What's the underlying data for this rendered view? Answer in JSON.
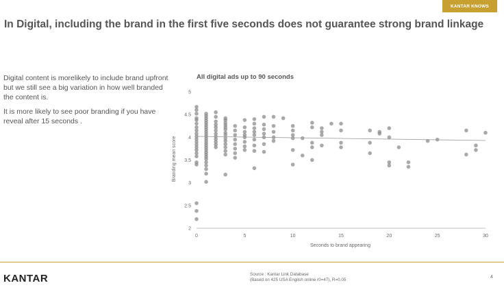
{
  "badge": "KANTAR KNOWS",
  "title": "In Digital, including the brand in the first five seconds does not guarantee strong brand linkage",
  "text": {
    "p1": "Digital content is morelikely to include brand upfront but we still see a big variation in how well branded the content is.",
    "p2": "It is more likely to see poor branding if you have reveal after 15 seconds ."
  },
  "logo": "KANTAR",
  "source": {
    "line1": "Source : Kantar Link Database",
    "line2": "(Based on 425 USA English online r0=47), R=0.05"
  },
  "page_number": "4",
  "colors": {
    "gold": "#c8a032",
    "point": "#8c8c8c"
  },
  "chart_data": {
    "type": "scatter",
    "title": "All digital ads up to 90 seconds",
    "xlabel": "Seconds to brand appearing",
    "ylabel": "Branding mean score",
    "xlim": [
      0,
      30
    ],
    "ylim": [
      2,
      5
    ],
    "xticks": [
      0,
      5,
      10,
      15,
      20,
      25,
      30
    ],
    "yticks": [
      2,
      2.5,
      3,
      3.5,
      4,
      4.5,
      5
    ],
    "grid": false,
    "trendline": {
      "x": [
        0,
        30
      ],
      "y": [
        4.02,
        3.93
      ]
    },
    "points": [
      [
        0,
        4.67
      ],
      [
        0,
        4.6
      ],
      [
        0,
        4.52
      ],
      [
        0,
        4.42
      ],
      [
        0,
        4.38
      ],
      [
        0,
        4.3
      ],
      [
        0,
        4.22
      ],
      [
        0,
        4.15
      ],
      [
        0,
        4.08
      ],
      [
        0,
        4.02
      ],
      [
        0,
        3.96
      ],
      [
        0,
        3.9
      ],
      [
        0,
        3.84
      ],
      [
        0,
        3.78
      ],
      [
        0,
        3.72
      ],
      [
        0,
        3.65
      ],
      [
        0,
        3.58
      ],
      [
        0,
        3.45
      ],
      [
        0,
        3.4
      ],
      [
        0,
        2.55
      ],
      [
        0,
        2.38
      ],
      [
        0,
        2.2
      ],
      [
        1,
        4.52
      ],
      [
        1,
        4.47
      ],
      [
        1,
        4.42
      ],
      [
        1,
        4.37
      ],
      [
        1,
        4.32
      ],
      [
        1,
        4.27
      ],
      [
        1,
        4.22
      ],
      [
        1,
        4.17
      ],
      [
        1,
        4.12
      ],
      [
        1,
        4.07
      ],
      [
        1,
        4.02
      ],
      [
        1,
        3.97
      ],
      [
        1,
        3.92
      ],
      [
        1,
        3.87
      ],
      [
        1,
        3.82
      ],
      [
        1,
        3.77
      ],
      [
        1,
        3.72
      ],
      [
        1,
        3.67
      ],
      [
        1,
        3.62
      ],
      [
        1,
        3.57
      ],
      [
        1,
        3.52
      ],
      [
        1,
        3.45
      ],
      [
        1,
        3.38
      ],
      [
        1,
        3.3
      ],
      [
        1,
        3.2
      ],
      [
        1,
        3.02
      ],
      [
        2,
        4.55
      ],
      [
        2,
        4.45
      ],
      [
        2,
        4.35
      ],
      [
        2,
        4.28
      ],
      [
        2,
        4.22
      ],
      [
        2,
        4.15
      ],
      [
        2,
        4.08
      ],
      [
        2,
        4.02
      ],
      [
        2,
        3.96
      ],
      [
        2,
        3.9
      ],
      [
        2,
        3.84
      ],
      [
        2,
        3.78
      ],
      [
        3,
        4.42
      ],
      [
        3,
        4.38
      ],
      [
        3,
        4.32
      ],
      [
        3,
        4.27
      ],
      [
        3,
        4.22
      ],
      [
        3,
        4.17
      ],
      [
        3,
        4.1
      ],
      [
        3,
        4.05
      ],
      [
        3,
        3.98
      ],
      [
        3,
        3.92
      ],
      [
        3,
        3.85
      ],
      [
        3,
        3.78
      ],
      [
        3,
        3.7
      ],
      [
        3,
        3.62
      ],
      [
        3,
        3.18
      ],
      [
        4,
        4.25
      ],
      [
        4,
        4.15
      ],
      [
        4,
        4.05
      ],
      [
        4,
        3.95
      ],
      [
        4,
        3.85
      ],
      [
        4,
        3.75
      ],
      [
        4,
        3.65
      ],
      [
        4,
        3.55
      ],
      [
        5,
        4.38
      ],
      [
        5,
        4.22
      ],
      [
        5,
        4.12
      ],
      [
        5,
        4.05
      ],
      [
        5,
        4.0
      ],
      [
        5,
        3.9
      ],
      [
        5,
        3.8
      ],
      [
        5,
        3.72
      ],
      [
        6,
        4.4
      ],
      [
        6,
        4.3
      ],
      [
        6,
        4.2
      ],
      [
        6,
        4.12
      ],
      [
        6,
        4.05
      ],
      [
        6,
        3.95
      ],
      [
        6,
        3.82
      ],
      [
        6,
        3.7
      ],
      [
        6,
        3.32
      ],
      [
        7,
        4.45
      ],
      [
        7,
        4.28
      ],
      [
        7,
        4.18
      ],
      [
        7,
        4.08
      ],
      [
        7,
        4.0
      ],
      [
        7,
        3.85
      ],
      [
        7,
        3.68
      ],
      [
        8,
        4.45
      ],
      [
        8,
        4.25
      ],
      [
        8,
        4.12
      ],
      [
        8,
        4.0
      ],
      [
        8,
        3.92
      ],
      [
        9,
        4.42
      ],
      [
        10,
        4.25
      ],
      [
        10,
        4.15
      ],
      [
        10,
        4.05
      ],
      [
        10,
        3.98
      ],
      [
        10,
        3.72
      ],
      [
        10,
        3.4
      ],
      [
        11,
        3.98
      ],
      [
        11,
        3.6
      ],
      [
        12,
        4.32
      ],
      [
        12,
        4.22
      ],
      [
        12,
        3.88
      ],
      [
        12,
        3.78
      ],
      [
        12,
        3.5
      ],
      [
        13,
        4.2
      ],
      [
        13,
        4.12
      ],
      [
        13,
        4.05
      ],
      [
        13,
        3.82
      ],
      [
        14,
        4.3
      ],
      [
        15,
        4.3
      ],
      [
        15,
        4.15
      ],
      [
        15,
        3.88
      ],
      [
        15,
        3.78
      ],
      [
        18,
        4.15
      ],
      [
        18,
        3.88
      ],
      [
        18,
        3.65
      ],
      [
        19,
        4.12
      ],
      [
        19,
        4.08
      ],
      [
        20,
        4.2
      ],
      [
        20,
        4.0
      ],
      [
        20,
        3.45
      ],
      [
        20,
        3.38
      ],
      [
        21,
        3.78
      ],
      [
        22,
        3.45
      ],
      [
        22,
        3.35
      ],
      [
        24,
        3.92
      ],
      [
        25,
        3.95
      ],
      [
        28,
        4.15
      ],
      [
        28,
        3.62
      ],
      [
        29,
        3.82
      ],
      [
        29,
        3.72
      ],
      [
        30,
        4.1
      ]
    ]
  }
}
